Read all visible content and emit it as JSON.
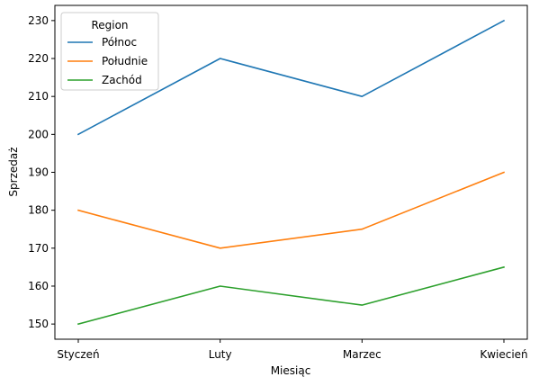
{
  "chart_data": {
    "type": "line",
    "categories": [
      "Styczeń",
      "Luty",
      "Marzec",
      "Kwiecień"
    ],
    "series": [
      {
        "name": "Północ",
        "values": [
          200,
          220,
          210,
          230
        ],
        "color": "#1f77b4"
      },
      {
        "name": "Południe",
        "values": [
          180,
          170,
          175,
          190
        ],
        "color": "#ff7f0e"
      },
      {
        "name": "Zachód",
        "values": [
          150,
          160,
          155,
          165
        ],
        "color": "#2ca02c"
      }
    ],
    "xlabel": "Miesiąc",
    "ylabel": "Sprzedaż",
    "ylim": [
      146,
      234
    ],
    "yticks": [
      150,
      160,
      170,
      180,
      190,
      200,
      210,
      220,
      230
    ],
    "grid": false,
    "legend": {
      "title": "Region",
      "placement": "top-left"
    }
  }
}
